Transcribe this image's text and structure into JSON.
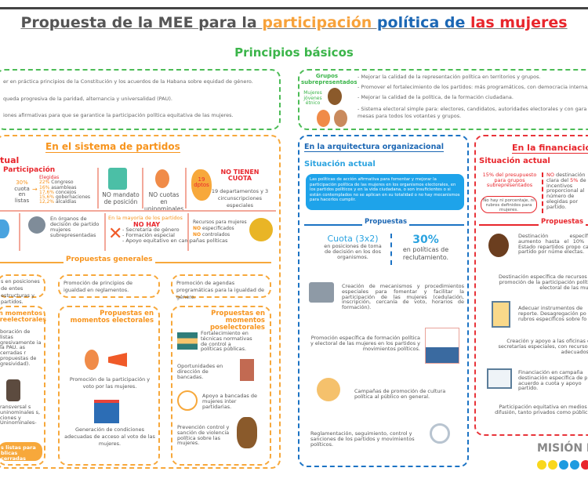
{
  "title": {
    "part1": "Propuesta de la MEE para la ",
    "part2": "participación",
    "part3": " política de",
    "part4": " las mujeres"
  },
  "principios": {
    "heading": "Principios básicos",
    "left_items": [
      "er en práctica principios de la Constitución y los acuerdos de la Habana sobre equidad de género.",
      "queda progresiva de la paridad, alternancia y universalidad (PAU).",
      "iones afirmativas para que se garantice la participación política equitativa de las mujeres."
    ],
    "groups_title": "Grupos subrepresentados",
    "groups_sub": "Mujeres jóvenes étnico",
    "right_items": [
      "- Mejorar la calidad de la representación política en territorios y grupos.",
      "- Promover el fortalecimiento de los partidos: más programáticos, con democracia interna, c",
      "- Mejorar la calidad de la política, de la formación ciudadana.",
      "- Sistema electoral simple para: electores, candidatos, autoridades electorales y con gara mesas para todos los votantes y grupos."
    ]
  },
  "partidos": {
    "heading": "En el sistema de partidos",
    "situacion": "tual",
    "participacion": "Participación",
    "cuota_pct": "30%",
    "cuota_text": "cuota en listas",
    "elegidas": "Elegidas",
    "elegidas_list": [
      {
        "pct": "22%",
        "label": "Congreso"
      },
      {
        "pct": "16%",
        "label": "asambleas"
      },
      {
        "pct": "17,6%",
        "label": "concejos"
      },
      {
        "pct": "15,6%",
        "label": "gobernaciones"
      },
      {
        "pct": "12,2%",
        "label": "alcaldías"
      }
    ],
    "no_mandato": "NO mandato de posición",
    "no_cuotas": "NO cuotas en uninominales",
    "dptos": "19 dptos",
    "no_tienen": "NO TIENEN CUOTA",
    "dptos_text": "19 departamentos y 3 circunscripciones especiales",
    "organos": "En órganos de decisión de partido mujeres subrepresentadas",
    "mayoria": "En la mayoría de los partidos",
    "no_hay": "NO HAY",
    "no_hay_list": [
      "- Secretaría de género",
      "- Formación especial",
      "- Apoyo equitativo en campañas políticas"
    ],
    "recursos": "Recursos para mujeres",
    "rec1_no": "NO",
    "rec1": " especificados",
    "rec2_no": "NO",
    "rec2": " controlados",
    "propuestas_generales": "Propuestas generales",
    "gen_boxes": [
      "s en posiciones de entes estructuras y partidos.",
      "Promoción de principios de igualdad en reglamentos.",
      "Promoción de agendas programáticas para la igualdad de género."
    ],
    "pre": {
      "title": "n momentos preelectorales",
      "text1": "boración de listas gresivamente ia la PAU. as cerradas r propuestas de gresividad).",
      "text2": "ransversal s uninominales s, ciones y Uninominales-",
      "button": "s listas para blicas cerradas"
    },
    "elec": {
      "title": "Propuestas en momentos electorales",
      "text1": "Promoción de la participación y voto por las mujeres.",
      "text2": "Generación de condiciones adecuadas de acceso al voto de las mujeres."
    },
    "pos": {
      "title": "Propuestas en momentos poselectorales",
      "items": [
        "Fortalecimiento en técnicas normativas de control a políticas públicas.",
        "Oportunidades en dirección de bancadas.",
        "Apoyo a bancadas de mujeres inter partidarias.",
        "Prevención control y sanción de violencia política sobre las mujeres."
      ]
    }
  },
  "arquitectura": {
    "heading": "En la arquitectura organizacional",
    "situacion": "Situación actual",
    "situacion_text": "Las políticas de acción afirmativa para fomentar y mejorar la participación política de las mujeres en los organismos electorales, en los partidos políticos y en la vida ciudadana, o son insuficientes o si están contemplados no se aplican en su totalidad o no hay mecanismos para hacerlos cumplir.",
    "propuestas": "Propuestas",
    "cuota": "Cuota (3x2)",
    "cuota_text": "en posiciones de toma de decisión en los dos organismos.",
    "pct": "30%",
    "pct_text": "en políticas de reclutamiento.",
    "items": [
      "Creación de mecanismos y procedimientos especiales para fomentar y facilitar la participación de las mujeres (cedulación, inscripción, cercanía de voto, horarios de formación).",
      "Promoción específica de formación política y electoral de las mujeres en los partidos y movimientos políticos.",
      "Campañas de promoción de cultura política al público en general.",
      "Reglamentación, seguimiento, control y sanciones de los partidos y movimientos políticos."
    ]
  },
  "financiacion": {
    "heading": "En la financiació",
    "situacion": "Situación actual",
    "pct15": "15% del presupuesto para grupos subrepresentados",
    "no_hay": "No hay ni porcentaje, ni rubros definidos para mujeres.",
    "no_dest_no": "NO",
    "no_dest": " destinación clara del ",
    "no_dest_pct": "5%",
    "no_dest_rest": " de incentivos proporcional al número de elegidas por partido.",
    "propuestas": "Propuestas",
    "items": [
      "Destinación específica aumento hasta el 10% de Estado repartidos propo cada partido por núme electas.",
      "Destinación específica de recursos pa promoción de la participación política electoral de las mujer",
      "Adecuar instrumentos de reporte. Desagregación po rubros específicos sobre fo",
      "Creación y apoyo a las oficinas o secretarías especiales, con recursos adecuados.",
      "Financiación en campaña destinación específica de p acuerdo a cuota y apoyo partido.",
      "Participación equitativa en medios de difusión, tanto privados como públicos."
    ]
  },
  "logo": {
    "text": "MISIÓN E",
    "dots": [
      "#f9d71c",
      "#f9d71c",
      "#1e9be0",
      "#1e9be0",
      "#e8262c",
      "#e8262c"
    ]
  }
}
